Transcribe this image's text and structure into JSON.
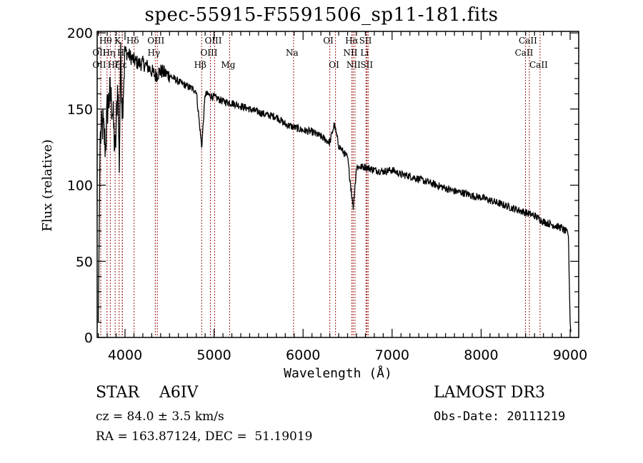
{
  "chart_data": {
    "type": "line",
    "title": "spec-55915-F5591506_sp11-181.fits",
    "xlabel": "Wavelength (Å)",
    "ylabel": "Flux (relative)",
    "xlim": [
      3687,
      9096
    ],
    "ylim": [
      0,
      201
    ],
    "xticks": [
      4000,
      5000,
      6000,
      7000,
      8000,
      9000
    ],
    "yticks": [
      0,
      50,
      100,
      150,
      200
    ],
    "grid": false,
    "legend": "none",
    "series": [
      {
        "name": "spectrum",
        "note": "approximate continuum shape with notable features read from the plot",
        "x": [
          3700,
          3720,
          3750,
          3780,
          3800,
          3830,
          3860,
          3890,
          3920,
          3935,
          3950,
          3970,
          4000,
          4050,
          4100,
          4150,
          4200,
          4250,
          4300,
          4340,
          4400,
          4500,
          4600,
          4700,
          4800,
          4861,
          4900,
          5000,
          5100,
          5200,
          5300,
          5400,
          5500,
          5600,
          5700,
          5800,
          5900,
          6000,
          6100,
          6200,
          6300,
          6350,
          6400,
          6500,
          6563,
          6600,
          6700,
          6800,
          6900,
          7000,
          7100,
          7200,
          7300,
          7400,
          7500,
          7600,
          7700,
          7800,
          7900,
          8000,
          8100,
          8200,
          8300,
          8400,
          8500,
          8600,
          8700,
          8800,
          8900,
          8980,
          9000,
          9010
        ],
        "y": [
          10,
          130,
          140,
          125,
          150,
          160,
          150,
          120,
          170,
          110,
          185,
          150,
          188,
          185,
          182,
          180,
          180,
          178,
          175,
          172,
          175,
          172,
          168,
          165,
          162,
          125,
          160,
          158,
          155,
          154,
          152,
          150,
          148,
          146,
          145,
          140,
          138,
          136,
          135,
          132,
          128,
          140,
          126,
          118,
          85,
          112,
          112,
          110,
          109,
          110,
          107,
          106,
          104,
          102,
          100,
          98,
          96,
          95,
          93,
          92,
          90,
          88,
          86,
          84,
          82,
          80,
          76,
          74,
          72,
          68,
          10,
          2
        ]
      }
    ],
    "spectral_lines": [
      {
        "label": "OII",
        "wavelength": 3727,
        "row": 2
      },
      {
        "label": "Hθ",
        "wavelength": 3798,
        "row": 1
      },
      {
        "label": "OII",
        "wavelength": 3727,
        "row": 3
      },
      {
        "label": "Hη",
        "wavelength": 3835,
        "row": 2
      },
      {
        "label": "Hζ",
        "wavelength": 3889,
        "row": 3
      },
      {
        "label": "K",
        "wavelength": 3934,
        "row": 1
      },
      {
        "label": "H",
        "wavelength": 3969,
        "row": 2
      },
      {
        "label": "Hε",
        "wavelength": 3970,
        "row": 3
      },
      {
        "label": "Hδ",
        "wavelength": 4102,
        "row": 1
      },
      {
        "label": "OIII",
        "wavelength": 4363,
        "row": 1
      },
      {
        "label": "Hγ",
        "wavelength": 4340,
        "row": 2
      },
      {
        "label": "Hβ",
        "wavelength": 4861,
        "row": 3
      },
      {
        "label": "OIII",
        "wavelength": 5007,
        "row": 1
      },
      {
        "label": "OIII",
        "wavelength": 4959,
        "row": 2
      },
      {
        "label": "Mg",
        "wavelength": 5175,
        "row": 3
      },
      {
        "label": "Na",
        "wavelength": 5893,
        "row": 2
      },
      {
        "label": "OI",
        "wavelength": 6300,
        "row": 1
      },
      {
        "label": "OI",
        "wavelength": 6364,
        "row": 3
      },
      {
        "label": "Hα",
        "wavelength": 6563,
        "row": 1
      },
      {
        "label": "NII",
        "wavelength": 6548,
        "row": 2
      },
      {
        "label": "NII",
        "wavelength": 6583,
        "row": 3
      },
      {
        "label": "SII",
        "wavelength": 6717,
        "row": 1
      },
      {
        "label": "Li",
        "wavelength": 6707,
        "row": 2
      },
      {
        "label": "SII",
        "wavelength": 6731,
        "row": 3
      },
      {
        "label": "CaII",
        "wavelength": 8542,
        "row": 1
      },
      {
        "label": "CaII",
        "wavelength": 8498,
        "row": 2
      },
      {
        "label": "CaII",
        "wavelength": 8662,
        "row": 3
      }
    ],
    "line_marker_color": "#a52a2a",
    "spectrum_color": "#000000"
  },
  "footer": {
    "object_class": "STAR",
    "subclass": "A6IV",
    "cz": "cz = 84.0 ± 3.5 km/s",
    "radec": "RA = 163.87124, DEC =  51.19019",
    "survey": "LAMOST DR3",
    "obs_date": "Obs-Date: 20111219"
  }
}
